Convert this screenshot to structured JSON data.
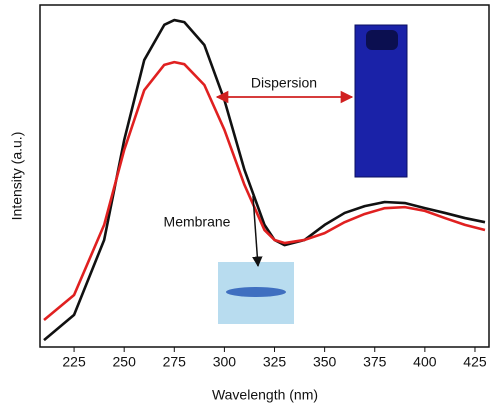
{
  "chart_data": {
    "type": "line",
    "x_label": "Wavelength (nm)",
    "y_label": "Intensity (a.u.)",
    "x": [
      210,
      225,
      240,
      250,
      260,
      270,
      275,
      280,
      290,
      300,
      310,
      320,
      325,
      330,
      340,
      350,
      360,
      370,
      380,
      390,
      400,
      410,
      420,
      430
    ],
    "series": [
      {
        "name": "Dispersion",
        "color": "#111111",
        "values": [
          2.0,
          9.4,
          31.3,
          60.5,
          83.9,
          94.2,
          95.6,
          95.0,
          88.3,
          72.2,
          51.8,
          35.7,
          31.3,
          29.8,
          31.3,
          35.7,
          39.2,
          41.2,
          42.4,
          42.1,
          40.6,
          39.2,
          37.7,
          36.5
        ]
      },
      {
        "name": "Membrane",
        "color": "#e02020",
        "values": [
          7.9,
          15.2,
          35.7,
          57.6,
          75.1,
          82.5,
          83.3,
          82.7,
          76.6,
          63.5,
          47.4,
          34.2,
          31.3,
          30.4,
          31.3,
          33.3,
          36.5,
          38.9,
          40.6,
          40.9,
          39.8,
          37.7,
          35.7,
          34.2
        ]
      }
    ],
    "xlim": [
      208,
      432
    ],
    "ylim": [
      0,
      100
    ],
    "xticks": [
      225,
      250,
      275,
      300,
      325,
      350,
      375,
      400,
      425
    ]
  }
}
